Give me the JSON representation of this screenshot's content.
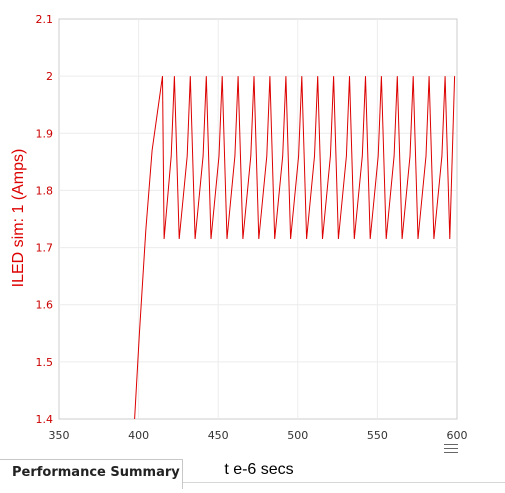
{
  "chart_data": {
    "type": "line",
    "ylabel": "ILED sim:  1 (Amps)",
    "xlabel": "t e-6 secs",
    "xlim": [
      350,
      600
    ],
    "ylim": [
      1.4,
      2.1
    ],
    "xticks": [
      350,
      400,
      450,
      500,
      550,
      600
    ],
    "yticks": [
      1.4,
      1.5,
      1.6,
      1.7,
      1.8,
      1.9,
      2.0,
      2.1
    ],
    "xtick_labels": [
      "350",
      "400",
      "450",
      "500",
      "550",
      "600"
    ],
    "ytick_labels": [
      "1.4",
      "1.5",
      "1.6",
      "1.7",
      "1.8",
      "1.9",
      "2",
      "2.1"
    ],
    "grid": true,
    "colors": {
      "series": "#dd0000",
      "tick_text": "#cc0000",
      "ylabel": "#dd0000",
      "xlabel": "#000000",
      "grid": "#ececec",
      "frame": "#cccccc",
      "plot_bg": "#ffffff"
    },
    "series": [
      {
        "x": [
          397.5,
          400.5,
          404.5,
          408.5,
          413.0,
          415.0,
          416.0,
          420.5,
          422.5,
          425.5,
          430.5,
          432.5,
          435.5,
          440.5,
          442.5,
          445.5,
          450.5,
          452.5,
          455.5,
          460.5,
          462.5,
          465.5,
          470.5,
          472.5,
          475.5,
          480.5,
          482.5,
          485.5,
          490.5,
          492.5,
          495.5,
          500.5,
          502.5,
          505.5,
          510.5,
          512.5,
          515.5,
          520.5,
          522.5,
          525.5,
          530.5,
          532.5,
          535.5,
          540.5,
          542.5,
          545.5,
          550.5,
          552.5,
          555.5,
          560.5,
          562.5,
          565.5,
          570.5,
          572.5,
          575.5,
          580.5,
          582.5,
          585.5,
          590.5,
          592.5,
          595.5,
          598.5
        ],
        "y": [
          1.4,
          1.55,
          1.73,
          1.87,
          1.96,
          2.0,
          1.715,
          1.86,
          2.0,
          1.715,
          1.86,
          2.0,
          1.715,
          1.86,
          2.0,
          1.715,
          1.86,
          2.0,
          1.715,
          1.86,
          2.0,
          1.715,
          1.86,
          2.0,
          1.715,
          1.86,
          2.0,
          1.715,
          1.86,
          2.0,
          1.715,
          1.86,
          2.0,
          1.715,
          1.86,
          2.0,
          1.715,
          1.86,
          2.0,
          1.715,
          1.86,
          2.0,
          1.715,
          1.86,
          2.0,
          1.715,
          1.86,
          2.0,
          1.715,
          1.86,
          2.0,
          1.715,
          1.86,
          2.0,
          1.715,
          1.86,
          2.0,
          1.715,
          1.86,
          2.0,
          1.715,
          2.0
        ]
      }
    ]
  },
  "footer": {
    "tab_label": "Performance Summary"
  },
  "icons": {
    "menu": "hamburger-icon"
  }
}
